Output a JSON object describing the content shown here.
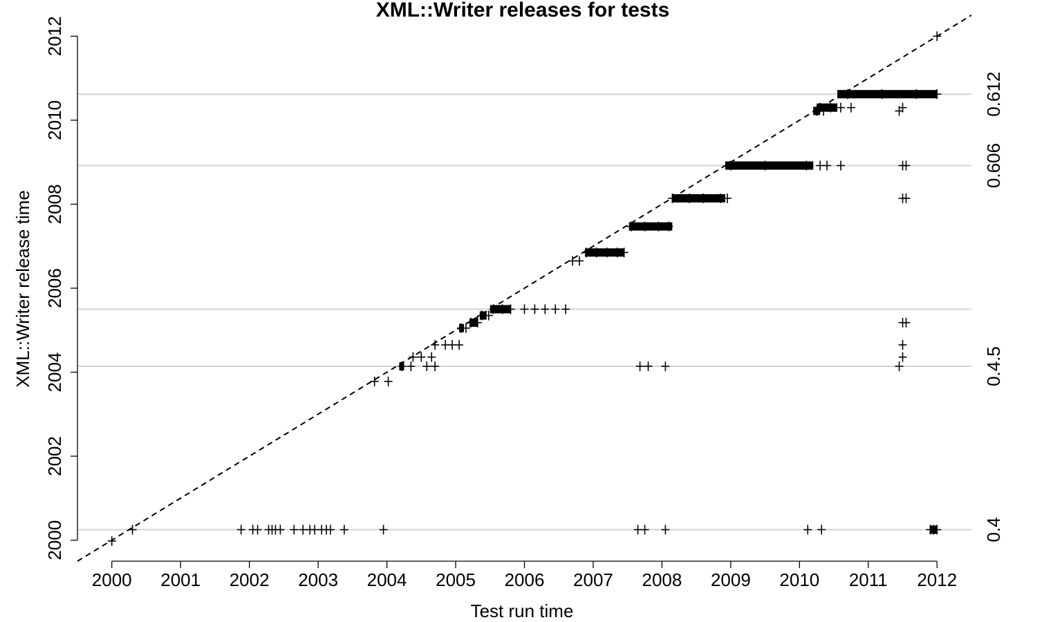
{
  "chart_data": {
    "type": "scatter",
    "title": "XML::Writer releases for tests",
    "xlabel": "Test run time",
    "ylabel": "XML::Writer release time",
    "xlim": [
      1999.5,
      2012.5
    ],
    "ylim": [
      1999.5,
      2012.5
    ],
    "x_ticks": [
      "2000",
      "2001",
      "2002",
      "2003",
      "2004",
      "2005",
      "2006",
      "2007",
      "2008",
      "2009",
      "2010",
      "2011",
      "2012"
    ],
    "y_ticks": [
      "2000",
      "2002",
      "2004",
      "2006",
      "2008",
      "2010",
      "2012"
    ],
    "reference_line": "y = x (dashed)",
    "release_lines": [
      {
        "version": "0.4",
        "y": 2000.25
      },
      {
        "version": "0.4.5",
        "y": 2004.14
      },
      {
        "version": "",
        "y": 2005.5
      },
      {
        "version": "0.606",
        "y": 2008.92
      },
      {
        "version": "0.612",
        "y": 2010.62
      }
    ],
    "grid": false,
    "marker": "+",
    "series": [
      {
        "points": [
          [
            2000.0,
            1999.98
          ],
          [
            2000.3,
            2000.25
          ],
          [
            2001.88,
            2000.25
          ],
          [
            2002.05,
            2000.25
          ],
          [
            2002.12,
            2000.25
          ],
          [
            2002.28,
            2000.25
          ],
          [
            2002.33,
            2000.25
          ],
          [
            2002.38,
            2000.25
          ],
          [
            2002.45,
            2000.25
          ],
          [
            2002.65,
            2000.25
          ],
          [
            2002.78,
            2000.25
          ],
          [
            2002.88,
            2000.25
          ],
          [
            2002.95,
            2000.25
          ],
          [
            2003.05,
            2000.25
          ],
          [
            2003.12,
            2000.25
          ],
          [
            2003.18,
            2000.25
          ],
          [
            2003.38,
            2000.25
          ],
          [
            2003.95,
            2000.25
          ],
          [
            2007.65,
            2000.25
          ],
          [
            2007.75,
            2000.25
          ],
          [
            2008.05,
            2000.25
          ],
          [
            2010.12,
            2000.25
          ],
          [
            2010.32,
            2000.25
          ],
          [
            2011.9,
            2000.25
          ],
          [
            2011.95,
            2000.25
          ],
          [
            2012.0,
            2000.25
          ],
          [
            2003.82,
            2003.78
          ],
          [
            2004.02,
            2003.78
          ],
          [
            2004.22,
            2004.14
          ],
          [
            2004.35,
            2004.14
          ],
          [
            2004.58,
            2004.14
          ],
          [
            2004.7,
            2004.14
          ],
          [
            2007.68,
            2004.14
          ],
          [
            2007.8,
            2004.14
          ],
          [
            2008.05,
            2004.14
          ],
          [
            2011.45,
            2004.14
          ],
          [
            2004.38,
            2004.36
          ],
          [
            2004.5,
            2004.36
          ],
          [
            2004.65,
            2004.36
          ],
          [
            2011.5,
            2004.36
          ],
          [
            2004.7,
            2004.65
          ],
          [
            2004.85,
            2004.65
          ],
          [
            2004.95,
            2004.65
          ],
          [
            2005.05,
            2004.65
          ],
          [
            2011.5,
            2004.65
          ],
          [
            2005.08,
            2005.05
          ],
          [
            2005.15,
            2005.05
          ],
          [
            2005.22,
            2005.18
          ],
          [
            2005.32,
            2005.18
          ],
          [
            2011.5,
            2005.18
          ],
          [
            2011.55,
            2005.18
          ],
          [
            2005.38,
            2005.35
          ],
          [
            2005.48,
            2005.35
          ],
          [
            2005.55,
            2005.5
          ],
          [
            2005.68,
            2005.5
          ],
          [
            2005.8,
            2005.5
          ],
          [
            2006.0,
            2005.5
          ],
          [
            2006.15,
            2005.5
          ],
          [
            2006.3,
            2005.5
          ],
          [
            2006.45,
            2005.5
          ],
          [
            2006.6,
            2005.5
          ],
          [
            2006.7,
            2006.65
          ],
          [
            2006.8,
            2006.65
          ],
          [
            2006.9,
            2006.85
          ],
          [
            2007.05,
            2006.85
          ],
          [
            2007.2,
            2006.85
          ],
          [
            2007.35,
            2006.85
          ],
          [
            2007.45,
            2006.85
          ],
          [
            2007.55,
            2007.47
          ],
          [
            2007.75,
            2007.47
          ],
          [
            2007.95,
            2007.47
          ],
          [
            2008.1,
            2007.47
          ],
          [
            2008.15,
            2008.14
          ],
          [
            2008.4,
            2008.14
          ],
          [
            2008.6,
            2008.14
          ],
          [
            2008.85,
            2008.14
          ],
          [
            2008.95,
            2008.14
          ],
          [
            2011.5,
            2008.14
          ],
          [
            2011.55,
            2008.14
          ],
          [
            2009.0,
            2008.92
          ],
          [
            2009.5,
            2008.92
          ],
          [
            2010.1,
            2008.92
          ],
          [
            2010.3,
            2008.92
          ],
          [
            2010.4,
            2008.92
          ],
          [
            2010.6,
            2008.92
          ],
          [
            2011.5,
            2008.92
          ],
          [
            2011.55,
            2008.92
          ],
          [
            2010.25,
            2010.22
          ],
          [
            2010.35,
            2010.22
          ],
          [
            2011.45,
            2010.22
          ],
          [
            2010.3,
            2010.3
          ],
          [
            2010.45,
            2010.3
          ],
          [
            2010.6,
            2010.3
          ],
          [
            2010.75,
            2010.3
          ],
          [
            2011.5,
            2010.3
          ],
          [
            2010.7,
            2010.62
          ],
          [
            2011.2,
            2010.62
          ],
          [
            2011.7,
            2010.62
          ],
          [
            2012.0,
            2010.62
          ],
          [
            2012.0,
            2012.0
          ]
        ]
      }
    ],
    "dense_bars": [
      {
        "x_from": 2004.18,
        "x_to": 2004.25,
        "y": 2004.14
      },
      {
        "x_from": 2005.05,
        "x_to": 2005.12,
        "y": 2005.05
      },
      {
        "x_from": 2005.2,
        "x_to": 2005.32,
        "y": 2005.18
      },
      {
        "x_from": 2005.35,
        "x_to": 2005.45,
        "y": 2005.35
      },
      {
        "x_from": 2005.5,
        "x_to": 2005.8,
        "y": 2005.5
      },
      {
        "x_from": 2006.88,
        "x_to": 2007.45,
        "y": 2006.85
      },
      {
        "x_from": 2007.52,
        "x_to": 2008.15,
        "y": 2007.47
      },
      {
        "x_from": 2008.15,
        "x_to": 2008.92,
        "y": 2008.14
      },
      {
        "x_from": 2008.92,
        "x_to": 2010.2,
        "y": 2008.92
      },
      {
        "x_from": 2010.25,
        "x_to": 2010.55,
        "y": 2010.3
      },
      {
        "x_from": 2010.2,
        "x_to": 2010.3,
        "y": 2010.22
      },
      {
        "x_from": 2010.55,
        "x_to": 2012.0,
        "y": 2010.62
      },
      {
        "x_from": 2011.9,
        "x_to": 2012.0,
        "y": 2000.25
      }
    ]
  }
}
